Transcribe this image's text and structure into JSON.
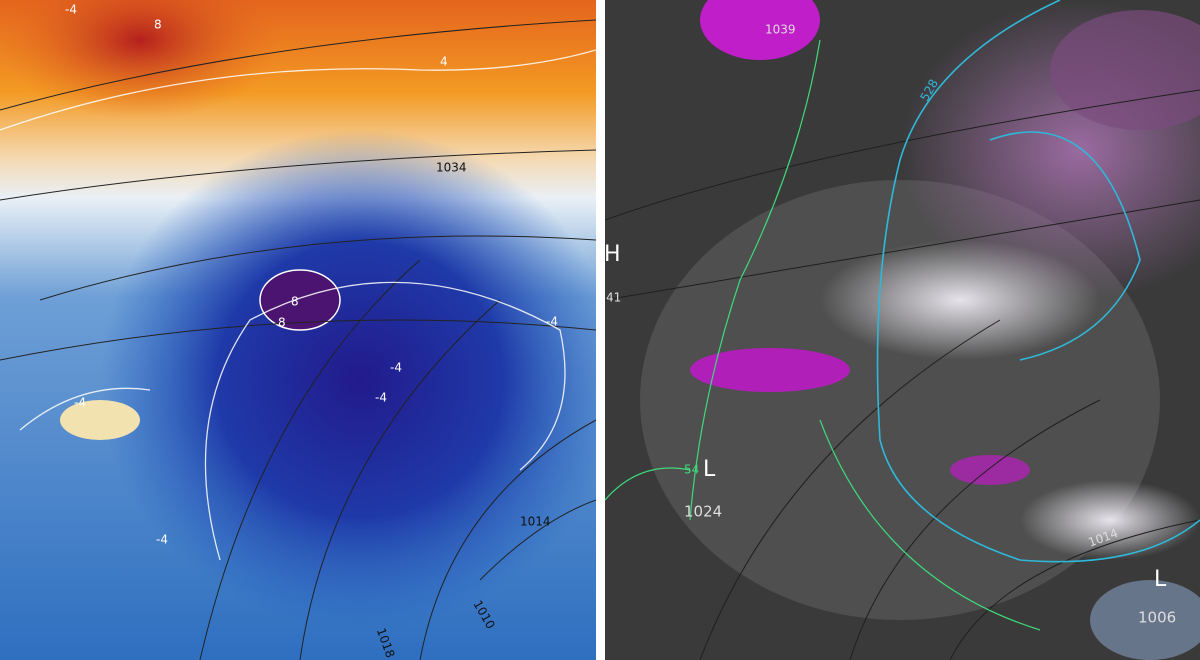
{
  "left_map": {
    "labels": [
      "-4",
      "8",
      "4",
      "1034",
      "8",
      "8",
      "-4",
      "-4",
      "-4",
      "-4",
      "-4",
      "1014",
      "1010",
      "1018"
    ]
  },
  "right_map": {
    "labels": [
      "1039",
      "528",
      "H",
      "41",
      "54",
      "L",
      "1024",
      "1014",
      "L",
      "1006"
    ]
  }
}
